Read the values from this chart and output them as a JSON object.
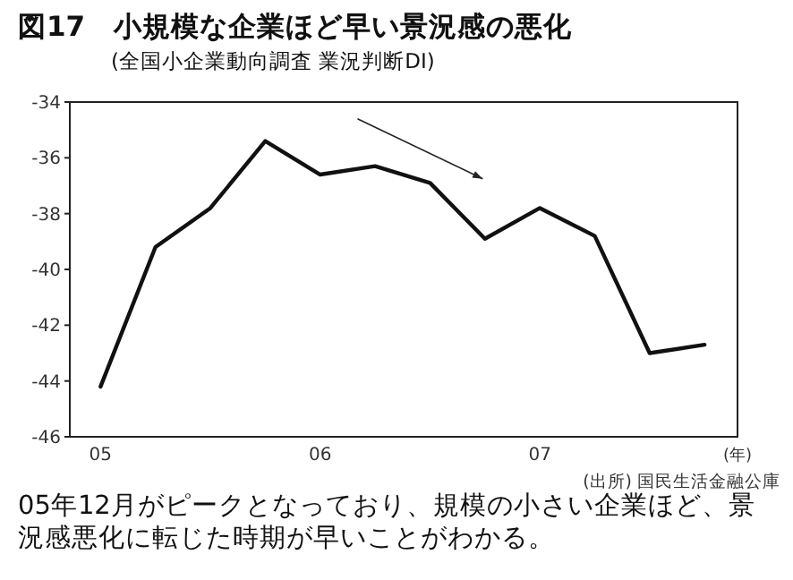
{
  "chart_data": {
    "type": "line",
    "title": "図17　小規模な企業ほど早い景況感の悪化",
    "subtitle": "(全国小企業動向調査 業況判断DI)",
    "xlabel": "(年)",
    "x": [
      5,
      5.25,
      5.5,
      5.75,
      6,
      6.25,
      6.5,
      6.75,
      7,
      7.25,
      7.5,
      7.75
    ],
    "series": [
      {
        "color": "#111111",
        "values": [
          -44.2,
          -39.2,
          -37.8,
          -35.4,
          -36.6,
          -36.3,
          -36.9,
          -38.9,
          -37.8,
          -38.8,
          -43.0,
          -42.7
        ]
      }
    ],
    "xlim": [
      4.86,
      7.9
    ],
    "xticks": [
      {
        "value": 5,
        "label": "05"
      },
      {
        "value": 6,
        "label": "06"
      },
      {
        "value": 7,
        "label": "07"
      }
    ],
    "ylim": [
      -46,
      -34
    ],
    "yticks": [
      -46,
      -44,
      -42,
      -40,
      -38,
      -36,
      -34
    ],
    "grid": false,
    "marker": "none",
    "line_style": "solid",
    "annotations": [
      "(出所) 国民生活金融公庫",
      "05年12月がピークとなっており、規模の小さい企業ほど、景況感悪化に転じた時期が早いことがわかる。"
    ]
  }
}
